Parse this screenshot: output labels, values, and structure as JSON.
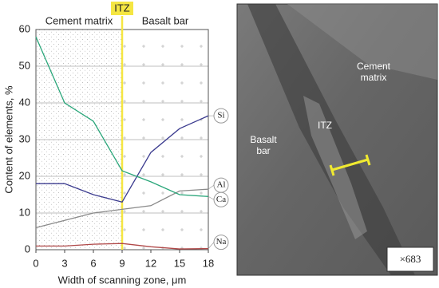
{
  "chart_data": {
    "type": "line",
    "x_label": "Width of scanning zone, μm",
    "y_label": "Content of elements, %",
    "x": [
      0,
      3,
      6,
      9,
      12,
      15,
      18
    ],
    "xlim": [
      0,
      18
    ],
    "xticks": [
      0,
      3,
      6,
      9,
      12,
      15,
      18
    ],
    "ylim": [
      0,
      60
    ],
    "yticks": [
      0,
      10,
      20,
      30,
      40,
      50,
      60
    ],
    "grid": true,
    "regions": [
      {
        "label": "Cement matrix",
        "from": 0,
        "to": 9
      },
      {
        "label": "Basalt bar",
        "from": 9,
        "to": 18
      }
    ],
    "boundary": {
      "label": "ITZ",
      "x": 9,
      "color": "#f5e642"
    },
    "series": [
      {
        "name": "Si",
        "color": "#3b3b8f",
        "values": [
          18,
          18,
          15,
          13,
          26.5,
          33,
          36.5
        ]
      },
      {
        "name": "Al",
        "color": "#8a8a8a",
        "values": [
          6,
          8,
          10,
          11,
          12,
          16,
          16.5
        ]
      },
      {
        "name": "Ca",
        "color": "#2aa67a",
        "values": [
          58,
          40,
          35,
          21.5,
          18.5,
          15,
          14.5
        ]
      },
      {
        "name": "Na",
        "color": "#b04848",
        "values": [
          1,
          1,
          1.5,
          1.7,
          0.8,
          0.2,
          0.3
        ]
      }
    ]
  },
  "photo": {
    "labels": [
      [
        "Cement",
        "matrix"
      ],
      [
        "ITZ"
      ],
      [
        "Basalt",
        "bar"
      ]
    ],
    "magnification": "×683"
  }
}
